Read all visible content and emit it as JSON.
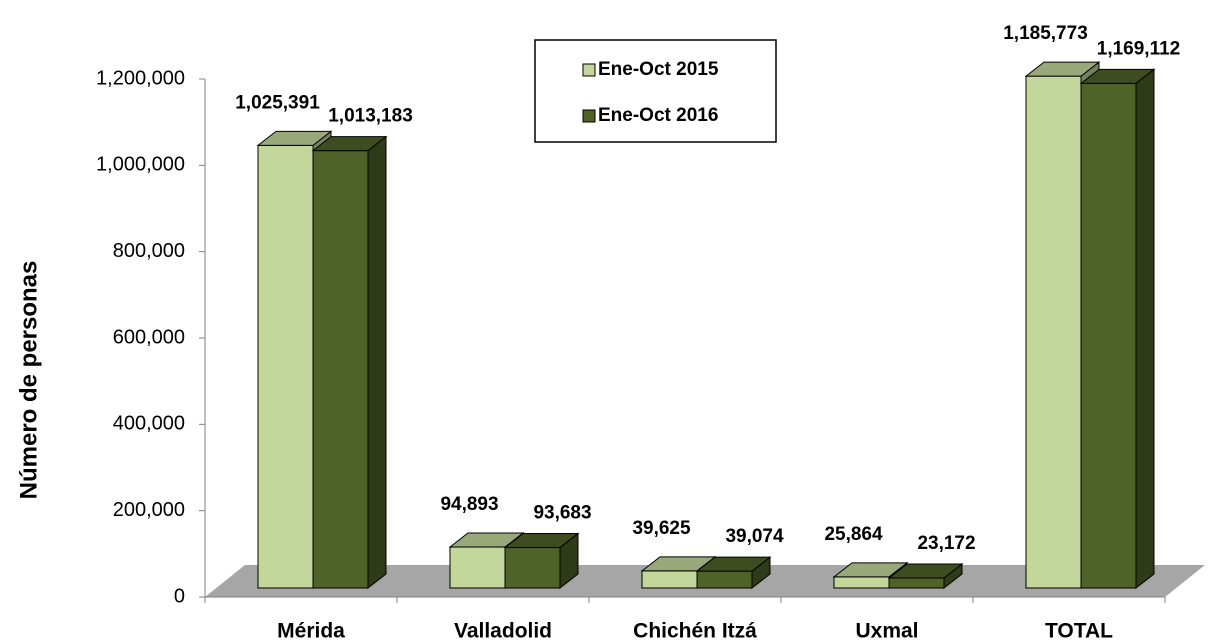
{
  "chart_data": {
    "type": "bar3d",
    "y_label": "Número de personas",
    "categories": [
      "Mérida",
      "Valladolid",
      "Chichén Itzá",
      "Uxmal",
      "TOTAL"
    ],
    "series": [
      {
        "name": "Ene-Oct 2015",
        "color": "#c4d79b",
        "values": [
          1025391,
          94893,
          39625,
          25864,
          1185773
        ],
        "value_labels": [
          "1,025,391",
          "94,893",
          "39,625",
          "25,864",
          "1,185,773"
        ]
      },
      {
        "name": "Ene-Oct 2016",
        "color": "#4f6228",
        "values": [
          1013183,
          93683,
          39074,
          23172,
          1169112
        ],
        "value_labels": [
          "1,013,183",
          "93,683",
          "39,074",
          "23,172",
          "1,169,112"
        ]
      }
    ],
    "ylim": [
      0,
      1200000
    ],
    "yticks": [
      0,
      {
        "value": 200000,
        "label": "200,000"
      },
      {
        "value": 400000,
        "label": "400,000"
      },
      {
        "value": 600000,
        "label": "600,000"
      },
      {
        "value": 800000,
        "label": "800,000"
      },
      {
        "value": 1000000,
        "label": "1,000,000"
      },
      {
        "value": 1200000,
        "label": "1,200,000"
      }
    ]
  }
}
